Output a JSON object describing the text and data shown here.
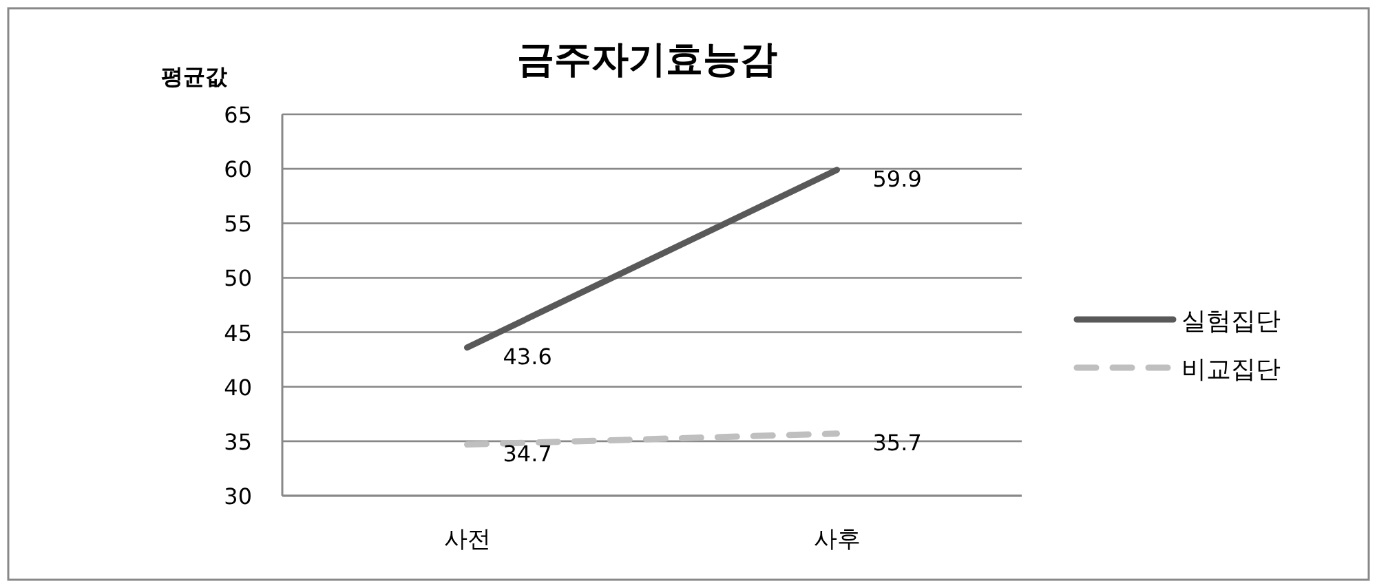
{
  "chart_data": {
    "type": "line",
    "title": "금주자기효능감",
    "ylabel": "평균값",
    "categories": [
      "사전",
      "사후"
    ],
    "series": [
      {
        "name": "실험집단",
        "color": "#595959",
        "values": [
          43.6,
          59.9
        ],
        "line_style": "solid"
      },
      {
        "name": "비교집단",
        "color": "#bfbfbf",
        "values": [
          34.7,
          35.7
        ],
        "line_style": "dashed"
      }
    ],
    "ylim": [
      30,
      65
    ],
    "yticks": [
      30,
      35,
      40,
      45,
      50,
      55,
      60,
      65
    ],
    "grid": "y",
    "legend": "right",
    "data_labels": true,
    "marker": "none"
  }
}
